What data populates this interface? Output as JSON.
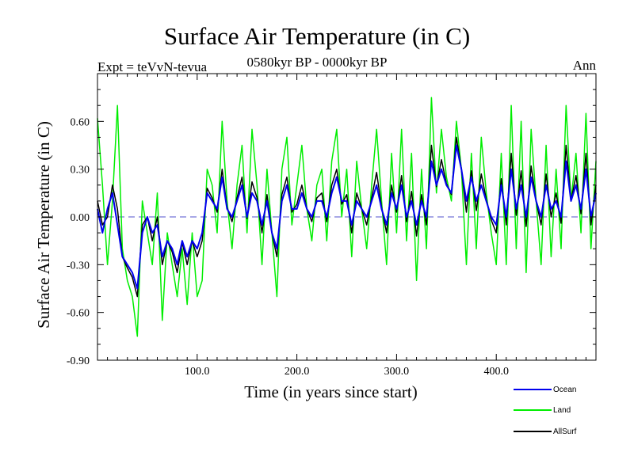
{
  "chart_data": {
    "type": "line",
    "title": "Surface Air Temperature (in C)",
    "subtitle": "0580kyr BP - 0000kyr BP",
    "left_label": "Expt = teVvN-tevua",
    "right_label": "Ann",
    "xlabel": "Time (in years since start)",
    "ylabel": "Surface Air Temperature (in C)",
    "xlim": [
      0,
      500
    ],
    "ylim": [
      -0.9,
      0.9
    ],
    "xticks": [
      100,
      200,
      300,
      400
    ],
    "xtick_labels": [
      "100.0",
      "200.0",
      "300.0",
      "400.0"
    ],
    "yticks": [
      -0.9,
      -0.6,
      -0.3,
      0.0,
      0.3,
      0.6
    ],
    "ytick_labels": [
      "-0.90",
      "-0.60",
      "-0.30",
      "0.00",
      "0.30",
      "0.60"
    ],
    "grid": false,
    "zero_line": true,
    "legend_position": "bottom-right",
    "series": [
      {
        "name": "Land",
        "color": "#00ee00",
        "x": [
          0,
          5,
          10,
          15,
          20,
          25,
          30,
          35,
          40,
          45,
          50,
          55,
          60,
          65,
          70,
          75,
          80,
          85,
          90,
          95,
          100,
          105,
          110,
          115,
          120,
          125,
          130,
          135,
          140,
          145,
          150,
          155,
          160,
          165,
          170,
          175,
          180,
          185,
          190,
          195,
          200,
          205,
          210,
          215,
          220,
          225,
          230,
          235,
          240,
          245,
          250,
          255,
          260,
          265,
          270,
          275,
          280,
          285,
          290,
          295,
          300,
          305,
          310,
          315,
          320,
          325,
          330,
          335,
          340,
          345,
          350,
          355,
          360,
          365,
          370,
          375,
          380,
          385,
          390,
          395,
          400,
          405,
          410,
          415,
          420,
          425,
          430,
          435,
          440,
          445,
          450,
          455,
          460,
          465,
          470,
          475,
          480,
          485,
          490,
          495,
          500
        ],
        "values": [
          0.62,
          0.2,
          -0.3,
          0.1,
          0.7,
          -0.2,
          -0.4,
          -0.5,
          -0.75,
          0.1,
          -0.1,
          -0.3,
          0.15,
          -0.65,
          -0.1,
          -0.3,
          -0.5,
          -0.2,
          -0.55,
          -0.1,
          -0.5,
          -0.4,
          0.3,
          0.2,
          -0.1,
          0.6,
          0.1,
          -0.2,
          0.2,
          0.45,
          -0.1,
          0.55,
          0.2,
          -0.3,
          0.3,
          -0.1,
          -0.5,
          0.3,
          0.5,
          -0.05,
          0.2,
          0.45,
          0.05,
          -0.15,
          0.2,
          0.3,
          -0.15,
          0.35,
          0.55,
          0.0,
          0.3,
          -0.25,
          0.35,
          0.05,
          -0.2,
          0.2,
          0.55,
          0.1,
          -0.3,
          0.4,
          -0.1,
          0.55,
          -0.15,
          0.4,
          -0.4,
          0.3,
          -0.2,
          0.75,
          0.15,
          0.55,
          0.25,
          0.1,
          0.6,
          0.3,
          -0.3,
          0.4,
          -0.2,
          0.5,
          0.15,
          -0.1,
          -0.3,
          0.4,
          -0.3,
          0.7,
          -0.2,
          0.6,
          -0.35,
          0.55,
          0.1,
          -0.3,
          0.45,
          -0.25,
          0.3,
          -0.2,
          0.7,
          0.1,
          0.4,
          -0.1,
          0.65,
          -0.2,
          0.35
        ]
      },
      {
        "name": "Ocean",
        "color": "#0000ee",
        "x": [
          0,
          5,
          10,
          15,
          20,
          25,
          30,
          35,
          40,
          45,
          50,
          55,
          60,
          65,
          70,
          75,
          80,
          85,
          90,
          95,
          100,
          105,
          110,
          115,
          120,
          125,
          130,
          135,
          140,
          145,
          150,
          155,
          160,
          165,
          170,
          175,
          180,
          185,
          190,
          195,
          200,
          205,
          210,
          215,
          220,
          225,
          230,
          235,
          240,
          245,
          250,
          255,
          260,
          265,
          270,
          275,
          280,
          285,
          290,
          295,
          300,
          305,
          310,
          315,
          320,
          325,
          330,
          335,
          340,
          345,
          350,
          355,
          360,
          365,
          370,
          375,
          380,
          385,
          390,
          395,
          400,
          405,
          410,
          415,
          420,
          425,
          430,
          435,
          440,
          445,
          450,
          455,
          460,
          465,
          470,
          475,
          480,
          485,
          490,
          495,
          500
        ],
        "values": [
          0.05,
          -0.1,
          0.05,
          0.15,
          -0.05,
          -0.25,
          -0.3,
          -0.35,
          -0.45,
          -0.1,
          0.0,
          -0.1,
          -0.05,
          -0.25,
          -0.15,
          -0.2,
          -0.3,
          -0.15,
          -0.25,
          -0.15,
          -0.2,
          -0.1,
          0.15,
          0.1,
          0.05,
          0.25,
          0.05,
          0.0,
          0.1,
          0.2,
          0.0,
          0.15,
          0.1,
          -0.05,
          0.1,
          -0.1,
          -0.2,
          0.1,
          0.2,
          0.05,
          0.05,
          0.15,
          0.05,
          0.0,
          0.1,
          0.1,
          0.0,
          0.15,
          0.25,
          0.1,
          0.1,
          -0.05,
          0.1,
          0.05,
          0.0,
          0.1,
          0.2,
          0.05,
          -0.05,
          0.15,
          0.05,
          0.2,
          0.0,
          0.1,
          -0.05,
          0.1,
          0.0,
          0.35,
          0.2,
          0.3,
          0.2,
          0.15,
          0.45,
          0.3,
          0.1,
          0.25,
          0.1,
          0.2,
          0.1,
          0.0,
          -0.05,
          0.2,
          0.0,
          0.3,
          0.05,
          0.2,
          0.0,
          0.25,
          0.1,
          0.0,
          0.2,
          0.05,
          0.1,
          0.0,
          0.35,
          0.1,
          0.2,
          0.05,
          0.3,
          0.0,
          0.15
        ]
      },
      {
        "name": "AllSurf",
        "color": "#000000",
        "x": [
          0,
          5,
          10,
          15,
          20,
          25,
          30,
          35,
          40,
          45,
          50,
          55,
          60,
          65,
          70,
          75,
          80,
          85,
          90,
          95,
          100,
          105,
          110,
          115,
          120,
          125,
          130,
          135,
          140,
          145,
          150,
          155,
          160,
          165,
          170,
          175,
          180,
          185,
          190,
          195,
          200,
          205,
          210,
          215,
          220,
          225,
          230,
          235,
          240,
          245,
          250,
          255,
          260,
          265,
          270,
          275,
          280,
          285,
          290,
          295,
          300,
          305,
          310,
          315,
          320,
          325,
          330,
          335,
          340,
          345,
          350,
          355,
          360,
          365,
          370,
          375,
          380,
          385,
          390,
          395,
          400,
          405,
          410,
          415,
          420,
          425,
          430,
          435,
          440,
          445,
          450,
          455,
          460,
          465,
          470,
          475,
          480,
          485,
          490,
          495,
          500
        ],
        "values": [
          0.1,
          -0.05,
          0.0,
          0.2,
          0.05,
          -0.25,
          -0.32,
          -0.38,
          -0.5,
          -0.05,
          0.0,
          -0.15,
          0.0,
          -0.3,
          -0.15,
          -0.22,
          -0.35,
          -0.16,
          -0.3,
          -0.15,
          -0.25,
          -0.15,
          0.18,
          0.12,
          0.03,
          0.3,
          0.06,
          -0.03,
          0.12,
          0.25,
          -0.01,
          0.22,
          0.12,
          -0.1,
          0.14,
          -0.1,
          -0.25,
          0.14,
          0.25,
          0.03,
          0.08,
          0.2,
          0.05,
          -0.03,
          0.12,
          0.15,
          -0.03,
          0.2,
          0.3,
          0.08,
          0.14,
          -0.1,
          0.15,
          0.05,
          -0.05,
          0.12,
          0.28,
          0.06,
          -0.1,
          0.2,
          0.03,
          0.26,
          -0.03,
          0.16,
          -0.12,
          0.14,
          -0.05,
          0.45,
          0.19,
          0.36,
          0.21,
          0.14,
          0.5,
          0.3,
          0.03,
          0.29,
          0.04,
          0.27,
          0.11,
          -0.02,
          -0.1,
          0.24,
          -0.05,
          0.4,
          0.01,
          0.29,
          -0.06,
          0.32,
          0.1,
          -0.05,
          0.27,
          0.0,
          0.15,
          -0.04,
          0.45,
          0.1,
          0.26,
          0.02,
          0.4,
          -0.05,
          0.2
        ]
      }
    ],
    "legend_order": [
      "Ocean",
      "Land",
      "AllSurf"
    ]
  }
}
